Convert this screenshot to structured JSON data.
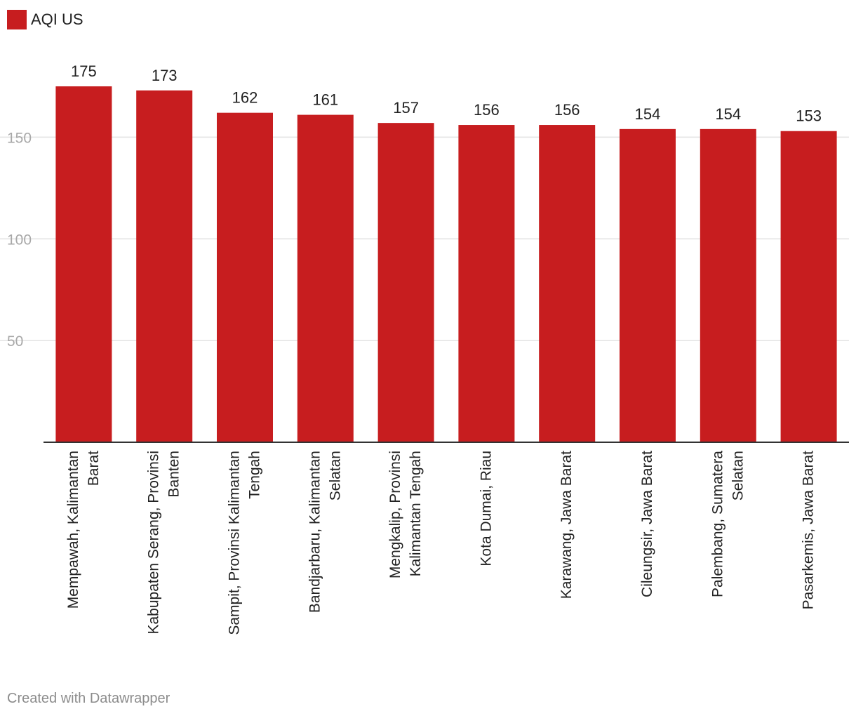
{
  "legend": {
    "label": "AQI US",
    "color": "#c71d1f"
  },
  "credit": "Created with Datawrapper",
  "chart_data": {
    "type": "bar",
    "categories": [
      [
        "Mempawah, Kalimantan",
        "Barat"
      ],
      [
        "Kabupaten Serang, Provinsi",
        "Banten"
      ],
      [
        "Sampit, Provinsi Kalimantan",
        "Tengah"
      ],
      [
        "Bandjarbaru, Kalimantan",
        "Selatan"
      ],
      [
        "Mengkalip, Provinsi",
        "Kalimantan Tengah"
      ],
      [
        "Kota Dumai, Riau"
      ],
      [
        "Karawang, Jawa Barat"
      ],
      [
        "Cileungsir, Jawa Barat"
      ],
      [
        "Palembang, Sumatera",
        "Selatan"
      ],
      [
        "Pasarkemis, Jawa Barat"
      ]
    ],
    "series": [
      {
        "name": "AQI US",
        "values": [
          175,
          173,
          162,
          161,
          157,
          156,
          156,
          154,
          154,
          153
        ]
      }
    ],
    "yticks": [
      50,
      100,
      150
    ],
    "ylim": [
      0,
      175
    ],
    "grid": true,
    "legend_position": "top-left",
    "bar_color": "#c71d1f"
  }
}
